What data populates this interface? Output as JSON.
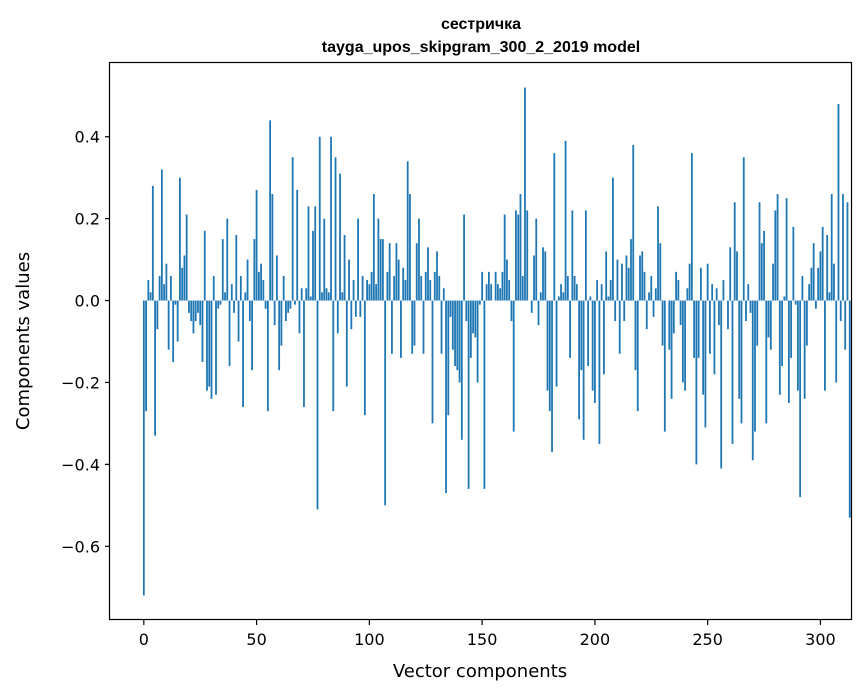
{
  "chart_data": {
    "type": "bar",
    "title": "сестричка",
    "subtitle": "tayga_upos_skipgram_300_2_2019 model",
    "xlabel": "Vector components",
    "ylabel": "Components values",
    "xlim": [
      -15,
      314
    ],
    "ylim": [
      -0.78,
      0.58
    ],
    "xticks": [
      0,
      50,
      100,
      150,
      200,
      250,
      300
    ],
    "yticks": [
      -0.6,
      -0.4,
      -0.2,
      0.0,
      0.2,
      0.4
    ],
    "ytick_labels": [
      "−0.6",
      "−0.4",
      "−0.2",
      "0.0",
      "0.2",
      "0.4"
    ],
    "xtick_labels": [
      "0",
      "50",
      "100",
      "150",
      "200",
      "250",
      "300"
    ],
    "grid": false,
    "bar_color": "#1f77b4",
    "series": [
      {
        "name": "сестричка",
        "values": [
          -0.72,
          -0.27,
          0.05,
          0.02,
          0.28,
          -0.33,
          -0.07,
          0.06,
          0.32,
          0.04,
          0.09,
          -0.12,
          0.06,
          -0.15,
          -0.01,
          -0.1,
          0.3,
          0.08,
          0.11,
          0.21,
          -0.03,
          -0.05,
          -0.08,
          -0.05,
          -0.03,
          -0.06,
          -0.15,
          0.17,
          -0.22,
          -0.21,
          -0.24,
          0.06,
          -0.23,
          -0.02,
          -0.01,
          0.15,
          0.02,
          0.2,
          -0.16,
          0.04,
          -0.03,
          0.16,
          -0.1,
          0.06,
          -0.26,
          0.02,
          0.1,
          -0.05,
          -0.17,
          0.15,
          0.27,
          0.07,
          0.09,
          0.05,
          -0.02,
          -0.27,
          0.44,
          0.26,
          -0.06,
          0.11,
          -0.17,
          -0.11,
          0.06,
          -0.05,
          -0.03,
          -0.02,
          0.35,
          -0.01,
          0.27,
          -0.08,
          0.03,
          -0.26,
          0.03,
          0.23,
          0.01,
          0.17,
          0.23,
          -0.51,
          0.4,
          0.02,
          0.2,
          0.03,
          0.02,
          0.4,
          -0.27,
          0.35,
          -0.08,
          0.31,
          0.02,
          0.16,
          -0.21,
          0.1,
          -0.07,
          0.05,
          -0.04,
          0.2,
          -0.04,
          0.06,
          -0.28,
          0.05,
          0.04,
          0.07,
          0.26,
          0.04,
          0.2,
          0.15,
          0.15,
          -0.5,
          0.07,
          0.14,
          -0.13,
          0.06,
          0.14,
          0.1,
          -0.14,
          0.08,
          0.05,
          0.34,
          0.26,
          -0.13,
          -0.11,
          0.14,
          0.2,
          0.06,
          -0.13,
          0.07,
          0.13,
          0.05,
          -0.3,
          0.07,
          0.12,
          0.06,
          -0.13,
          0.03,
          -0.47,
          -0.28,
          -0.04,
          -0.12,
          -0.16,
          -0.17,
          -0.2,
          -0.34,
          0.21,
          -0.05,
          -0.46,
          -0.14,
          -0.08,
          -0.09,
          -0.2,
          -0.01,
          0.07,
          -0.46,
          0.04,
          0.07,
          0.04,
          0.0,
          0.07,
          0.04,
          0.03,
          0.07,
          0.21,
          0.1,
          0.05,
          -0.05,
          -0.32,
          0.22,
          0.21,
          0.26,
          0.06,
          0.52,
          0.22,
          0.0,
          -0.03,
          0.11,
          0.2,
          -0.06,
          0.02,
          0.13,
          0.12,
          -0.22,
          -0.27,
          -0.37,
          0.36,
          -0.21,
          0.01,
          0.04,
          0.02,
          0.39,
          0.06,
          -0.14,
          0.22,
          0.06,
          0.04,
          -0.29,
          -0.17,
          -0.34,
          0.22,
          -0.16,
          0.01,
          -0.22,
          -0.25,
          0.05,
          -0.35,
          0.04,
          -0.18,
          0.12,
          0.01,
          0.05,
          0.3,
          -0.05,
          0.1,
          -0.13,
          0.09,
          -0.05,
          0.11,
          0.08,
          0.15,
          0.38,
          -0.17,
          -0.27,
          0.11,
          0.12,
          0.07,
          -0.07,
          0.02,
          0.06,
          -0.04,
          0.03,
          0.23,
          0.14,
          -0.11,
          -0.32,
          0.0,
          -0.12,
          -0.24,
          -0.08,
          0.07,
          0.05,
          -0.06,
          -0.2,
          -0.22,
          0.03,
          0.09,
          0.36,
          -0.14,
          -0.4,
          -0.14,
          0.08,
          -0.23,
          -0.31,
          0.09,
          -0.13,
          0.04,
          -0.18,
          0.03,
          -0.06,
          -0.41,
          0.05,
          0.0,
          -0.07,
          0.13,
          -0.35,
          0.24,
          0.12,
          -0.24,
          -0.3,
          0.35,
          -0.05,
          0.04,
          -0.03,
          -0.39,
          -0.32,
          -0.11,
          0.24,
          0.14,
          0.17,
          -0.3,
          -0.09,
          -0.12,
          0.09,
          0.22,
          0.26,
          -0.23,
          -0.16,
          0.01,
          0.25,
          -0.25,
          -0.14,
          0.18,
          -0.01,
          -0.22,
          -0.48,
          0.06,
          -0.24,
          -0.11,
          0.04,
          0.08,
          0.14,
          -0.02,
          0.08,
          0.12,
          0.18,
          -0.22,
          0.16,
          0.02,
          0.26,
          0.09,
          -0.2,
          0.48,
          -0.05,
          0.26,
          -0.12,
          0.24,
          -0.53,
          0.0
        ]
      }
    ]
  }
}
